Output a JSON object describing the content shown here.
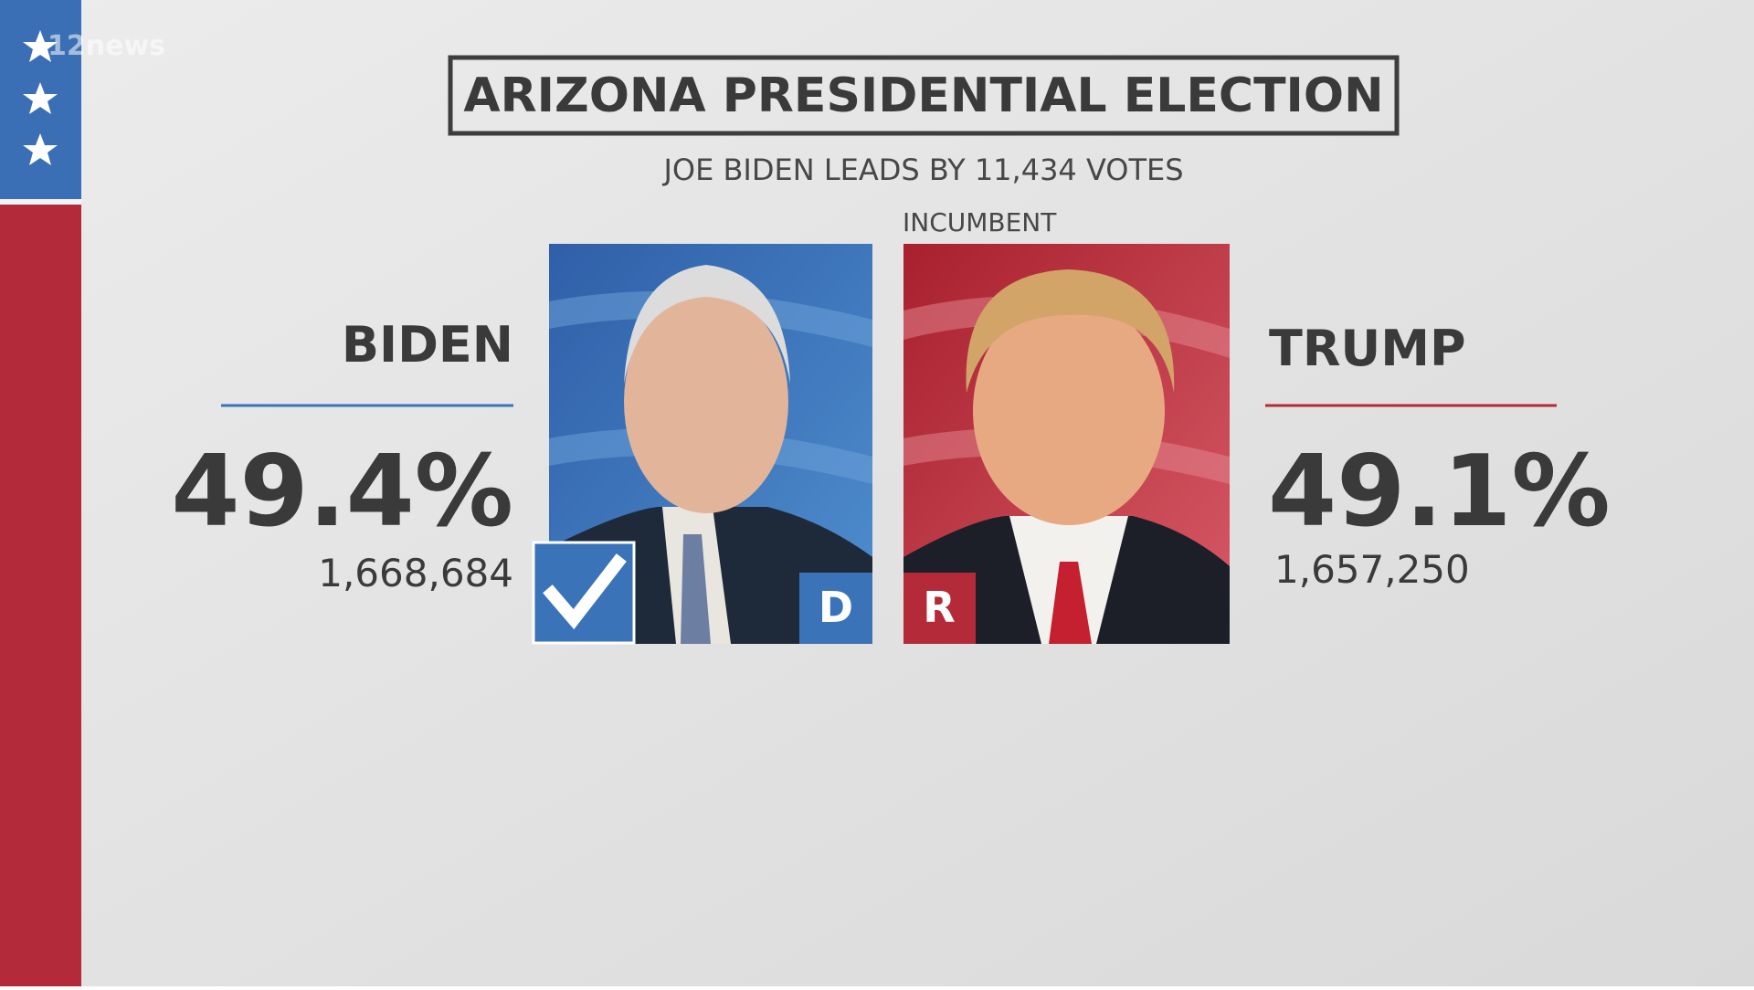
{
  "logo": "12news",
  "header": {
    "title": "ARIZONA PRESIDENTIAL ELECTION",
    "subtitle": "JOE BIDEN LEADS BY 11,434 VOTES"
  },
  "candidates": [
    {
      "name": "BIDEN",
      "percent": "49.4%",
      "votes": "1,668,684",
      "party": "D",
      "color": "#3a73b8"
    },
    {
      "name": "TRUMP",
      "percent": "49.1%",
      "votes": "1,657,250",
      "party": "R",
      "color": "#b52a38",
      "label": "INCUMBENT"
    }
  ]
}
